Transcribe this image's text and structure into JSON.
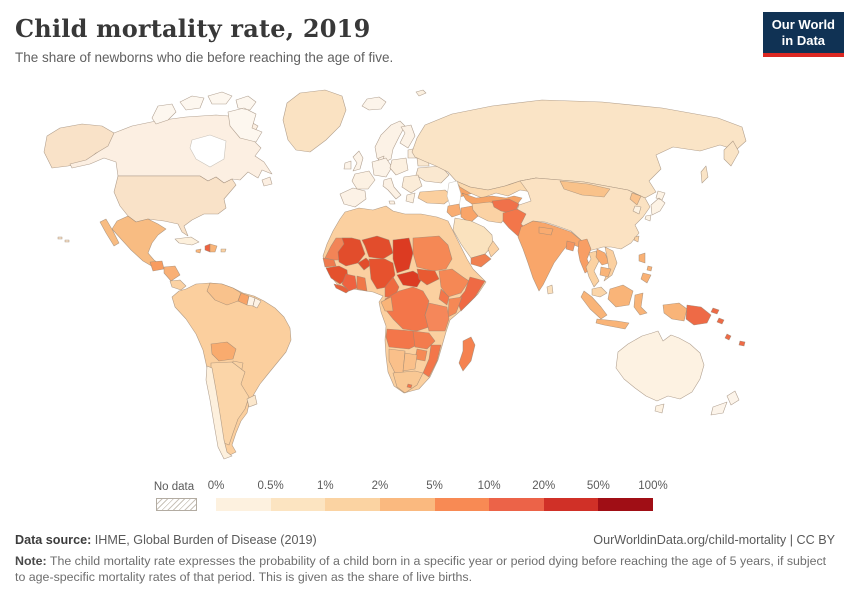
{
  "header": {
    "title": "Child mortality rate, 2019",
    "subtitle": "The share of newborns who die before reaching the age of five.",
    "logo_line1": "Our World",
    "logo_line2": "in Data",
    "logo_bg": "#103254",
    "logo_accent": "#dc2822"
  },
  "legend": {
    "no_data_label": "No data",
    "tick_labels": [
      "0%",
      "0.5%",
      "1%",
      "2%",
      "5%",
      "10%",
      "20%",
      "50%",
      "100%"
    ],
    "bucket_colors": [
      "#fdf1df",
      "#fce4c1",
      "#fbd3a2",
      "#fab97f",
      "#f88a54",
      "#ec6348",
      "#d03027",
      "#a00e15"
    ]
  },
  "footer": {
    "source_label": "Data source:",
    "source_text": " IHME, Global Burden of Disease (2019)",
    "link_text": "OurWorldinData.org/child-mortality | CC BY",
    "note_label": "Note:",
    "note_text": " The child mortality rate expresses the probability of a child born in a specific year or period dying before reaching the age of 5 years, if subject to age-specific mortality rates of that period. This is given as the share of live births."
  },
  "chart_data": {
    "type": "choropleth_map",
    "title": "Child mortality rate, 2019",
    "unit": "%",
    "legend_position": "bottom",
    "scale": "custom log-like buckets",
    "buckets": [
      {
        "range": "0–0.5%",
        "color": "#fdf1df"
      },
      {
        "range": "0.5–1%",
        "color": "#fce4c1"
      },
      {
        "range": "1–2%",
        "color": "#fbd3a2"
      },
      {
        "range": "2–5%",
        "color": "#fab97f"
      },
      {
        "range": "5–10%",
        "color": "#f88a54"
      },
      {
        "range": "10–20%",
        "color": "#ec6348"
      },
      {
        "range": "20–50%",
        "color": "#d03027"
      },
      {
        "range": "50–100%",
        "color": "#a00e15"
      }
    ],
    "no_data": {
      "label": "No data",
      "pattern": "diagonal-hatch"
    },
    "region_values": [
      {
        "region": "Canada",
        "bucket": "0–0.5%"
      },
      {
        "region": "United States",
        "bucket": "0.5–1%"
      },
      {
        "region": "Greenland",
        "bucket": "0.5–1%"
      },
      {
        "region": "Mexico",
        "bucket": "1–2%"
      },
      {
        "region": "Guatemala",
        "bucket": "2–5%"
      },
      {
        "region": "Haiti",
        "bucket": "5–10%"
      },
      {
        "region": "Cuba",
        "bucket": "0–0.5%"
      },
      {
        "region": "Brazil",
        "bucket": "1–2%"
      },
      {
        "region": "Bolivia",
        "bucket": "2–5%"
      },
      {
        "region": "Guyana",
        "bucket": "2–5%"
      },
      {
        "region": "Chile",
        "bucket": "0–0.5%"
      },
      {
        "region": "Argentina",
        "bucket": "1–2%"
      },
      {
        "region": "Western Europe",
        "bucket": "0–0.5%"
      },
      {
        "region": "Ukraine",
        "bucket": "0.5–1%"
      },
      {
        "region": "Turkey",
        "bucket": "1–2%"
      },
      {
        "region": "Russia",
        "bucket": "0.5–1%"
      },
      {
        "region": "Kazakhstan",
        "bucket": "1–2%"
      },
      {
        "region": "Uzbekistan",
        "bucket": "2–5%"
      },
      {
        "region": "China",
        "bucket": "0.5–1%"
      },
      {
        "region": "Mongolia",
        "bucket": "1–2%"
      },
      {
        "region": "Japan",
        "bucket": "0–0.5%"
      },
      {
        "region": "North Korea",
        "bucket": "1–2%"
      },
      {
        "region": "Saudi Arabia",
        "bucket": "0.5–1%"
      },
      {
        "region": "Yemen",
        "bucket": "5–10%"
      },
      {
        "region": "Iraq",
        "bucket": "2–5%"
      },
      {
        "region": "Iran",
        "bucket": "1–2%"
      },
      {
        "region": "Afghanistan",
        "bucket": "5–10%"
      },
      {
        "region": "Pakistan",
        "bucket": "5–10%"
      },
      {
        "region": "India",
        "bucket": "2–5%"
      },
      {
        "region": "Bangladesh",
        "bucket": "2–5%"
      },
      {
        "region": "Myanmar",
        "bucket": "2–5%"
      },
      {
        "region": "Thailand",
        "bucket": "1–2%"
      },
      {
        "region": "Vietnam",
        "bucket": "1–2%"
      },
      {
        "region": "Indonesia",
        "bucket": "2–5%"
      },
      {
        "region": "Philippines",
        "bucket": "2–5%"
      },
      {
        "region": "Papua New Guinea",
        "bucket": "5–10%"
      },
      {
        "region": "Australia",
        "bucket": "0–0.5%"
      },
      {
        "region": "New Zealand",
        "bucket": "0–0.5%"
      },
      {
        "region": "Morocco/Algeria/Libya/Egypt",
        "bucket": "1–2%"
      },
      {
        "region": "Mauritania",
        "bucket": "5–10%"
      },
      {
        "region": "Mali",
        "bucket": "10–20%"
      },
      {
        "region": "Niger",
        "bucket": "10–20%"
      },
      {
        "region": "Chad",
        "bucket": "10–20%"
      },
      {
        "region": "Nigeria",
        "bucket": "10–20%"
      },
      {
        "region": "Guinea",
        "bucket": "10–20%"
      },
      {
        "region": "Central African Republic",
        "bucket": "10–20%"
      },
      {
        "region": "South Sudan",
        "bucket": "10–20%"
      },
      {
        "region": "Sudan",
        "bucket": "5–10%"
      },
      {
        "region": "Ethiopia",
        "bucket": "5–10%"
      },
      {
        "region": "Somalia",
        "bucket": "10–20%"
      },
      {
        "region": "DR Congo",
        "bucket": "5–10%"
      },
      {
        "region": "Angola",
        "bucket": "5–10%"
      },
      {
        "region": "Mozambique",
        "bucket": "5–10%"
      },
      {
        "region": "Madagascar",
        "bucket": "5–10%"
      },
      {
        "region": "Namibia",
        "bucket": "2–5%"
      },
      {
        "region": "Botswana",
        "bucket": "2–5%"
      },
      {
        "region": "South Africa",
        "bucket": "2–5%"
      }
    ]
  },
  "map": {
    "ocean": "#ffffff",
    "border_color": "#9a8573",
    "regions": {
      "alaska": "#f9e2c8",
      "canada": "#fcefe2",
      "arctic-islands": "#fdf7ef",
      "hudson-bay": "#ffffff",
      "newfoundland": "#fcefe2",
      "greenland": "#fae2c2",
      "iceland": "#fcf4ea",
      "svalbard": "#fbf0e0",
      "usa": "#f9e2c8",
      "hawaii": "#f9e2c8",
      "mexico": "#f8bc82",
      "baja": "#f8bc82",
      "guatemala": "#f89c60",
      "honduras-nicaragua": "#f9b076",
      "costa-rica-panama": "#fbd2a4",
      "cuba": "#fdf0dc",
      "jamaica": "#f9b478",
      "haiti": "#ee6240",
      "dominican-republic": "#f9b478",
      "puerto-rico": "#fbd2a4",
      "south-america": "#fbcf9e",
      "venezuela": "#f9c28c",
      "guyana": "#f8a468",
      "suriname": "#fdf4e8",
      "french-guiana": "#fdf2e4",
      "bolivia": "#f9ab6e",
      "paraguay": "#fbd2a2",
      "argentina": "#fbd5a8",
      "chile": "#fdf0dd",
      "uruguay": "#fbe7cc",
      "uk": "#fcf3e8",
      "ireland": "#fcf3e8",
      "scandinavia": "#fcf2e6",
      "finland": "#fcf2e6",
      "denmark": "#fcf2e6",
      "france": "#fcf1e3",
      "iberia": "#fcf2e6",
      "germany-central": "#fcf3e8",
      "poland": "#fcf0e0",
      "italy": "#fcf1e4",
      "baltics": "#fbeedd",
      "belarus": "#fae8d0",
      "ukraine": "#fae8d0",
      "balkans": "#fbecd8",
      "greece": "#fcf0e0",
      "turkey": "#fbcf9e",
      "caucasus": "#f6a467",
      "russia": "#fae4c6",
      "kamchatka": "#fae4c6",
      "sakhalin": "#fae4c6",
      "kazakhstan": "#fbd9ae",
      "central-asia": "#f6a365",
      "caspian-sea": "#ffffff",
      "china": "#fbe2c2",
      "mongolia": "#f9c28a",
      "north-korea": "#fac28c",
      "south-korea": "#fdf2e2",
      "japan": "#fdf3e5",
      "taiwan": "#fbd0a0",
      "levant": "#f9ad72",
      "iraq": "#f9a468",
      "saudi": "#fae2be",
      "yemen": "#f08050",
      "oman": "#fbd2a4",
      "iran": "#fbd2a4",
      "afghanistan": "#f0714a",
      "pakistan": "#f3764a",
      "india": "#f9a66a",
      "nepal": "#f9ab70",
      "bangladesh": "#f59560",
      "sri-lanka": "#fbe0bc",
      "myanmar": "#f89e64",
      "thailand": "#fbd2a2",
      "laos": "#f9aa6e",
      "vietnam": "#fbd0a0",
      "cambodia": "#f9b478",
      "malaysia": "#fbd5a8",
      "indonesia": "#f9b478",
      "png": "#ee6a46",
      "philippines": "#f9b175",
      "pacific-islands": "#ee6a46",
      "australia": "#fdf2e2",
      "tasmania": "#fdf2e2",
      "new-zealand": "#fcf4ea",
      "africa-north": "#fbd0a0",
      "mauritania": "#f28457",
      "senegal": "#ef7a4e",
      "guinea": "#e4512d",
      "sierra-leone-liberia": "#e8603a",
      "mali": "#e24d2c",
      "ivory-coast": "#ee6240",
      "ghana": "#f07848",
      "burkina": "#e24d2c",
      "niger": "#e24d2c",
      "nigeria": "#e6522e",
      "chad": "#dc3b22",
      "car": "#dc3b22",
      "cameroon": "#ee6a40",
      "sudan": "#f58855",
      "south-sudan": "#e85a32",
      "ethiopia": "#f58855",
      "somalia": "#ef6a44",
      "kenya": "#f58855",
      "uganda": "#f3764a",
      "drc": "#f3764a",
      "tanzania": "#f5875a",
      "gabon-congo": "#f9b478",
      "angola": "#f3764a",
      "zambia": "#f37c4e",
      "mozambique": "#f3764a",
      "zimbabwe": "#f58a56",
      "namibia": "#fac08a",
      "botswana": "#fac08a",
      "south-africa": "#f9c894",
      "lesotho": "#f3764a",
      "madagascar": "#f58250"
    }
  }
}
